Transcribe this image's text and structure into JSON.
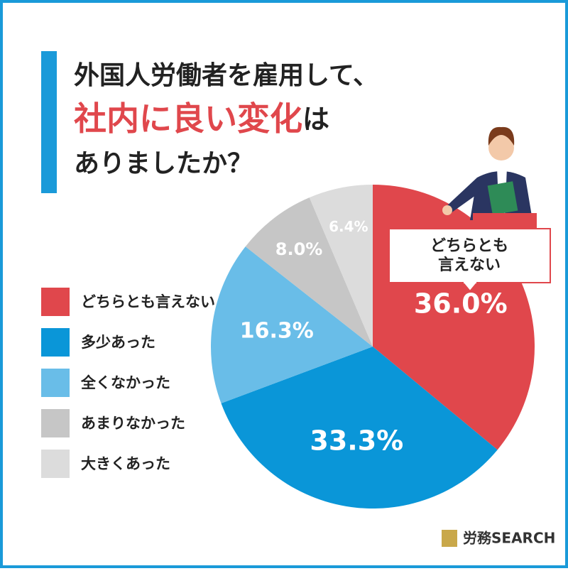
{
  "chart_data": {
    "type": "pie",
    "title": [
      "外国人労働者を雇用して、",
      "社内に良い変化",
      "は",
      "ありましたか？"
    ],
    "categories": [
      "どちらとも言えない",
      "多少あった",
      "全くなかった",
      "あまりなかった",
      "大きくあった"
    ],
    "values": [
      36.0,
      33.3,
      16.3,
      8.0,
      6.4
    ],
    "value_labels": [
      "36.0%",
      "33.3%",
      "16.3%",
      "8.0%",
      "6.4%"
    ],
    "colors": [
      "#e0474c",
      "#0a96d8",
      "#69bde8",
      "#c6c6c6",
      "#dcdcdc"
    ],
    "callout": [
      "どちらとも",
      "言えない"
    ],
    "logo": "労務SEARCH"
  }
}
